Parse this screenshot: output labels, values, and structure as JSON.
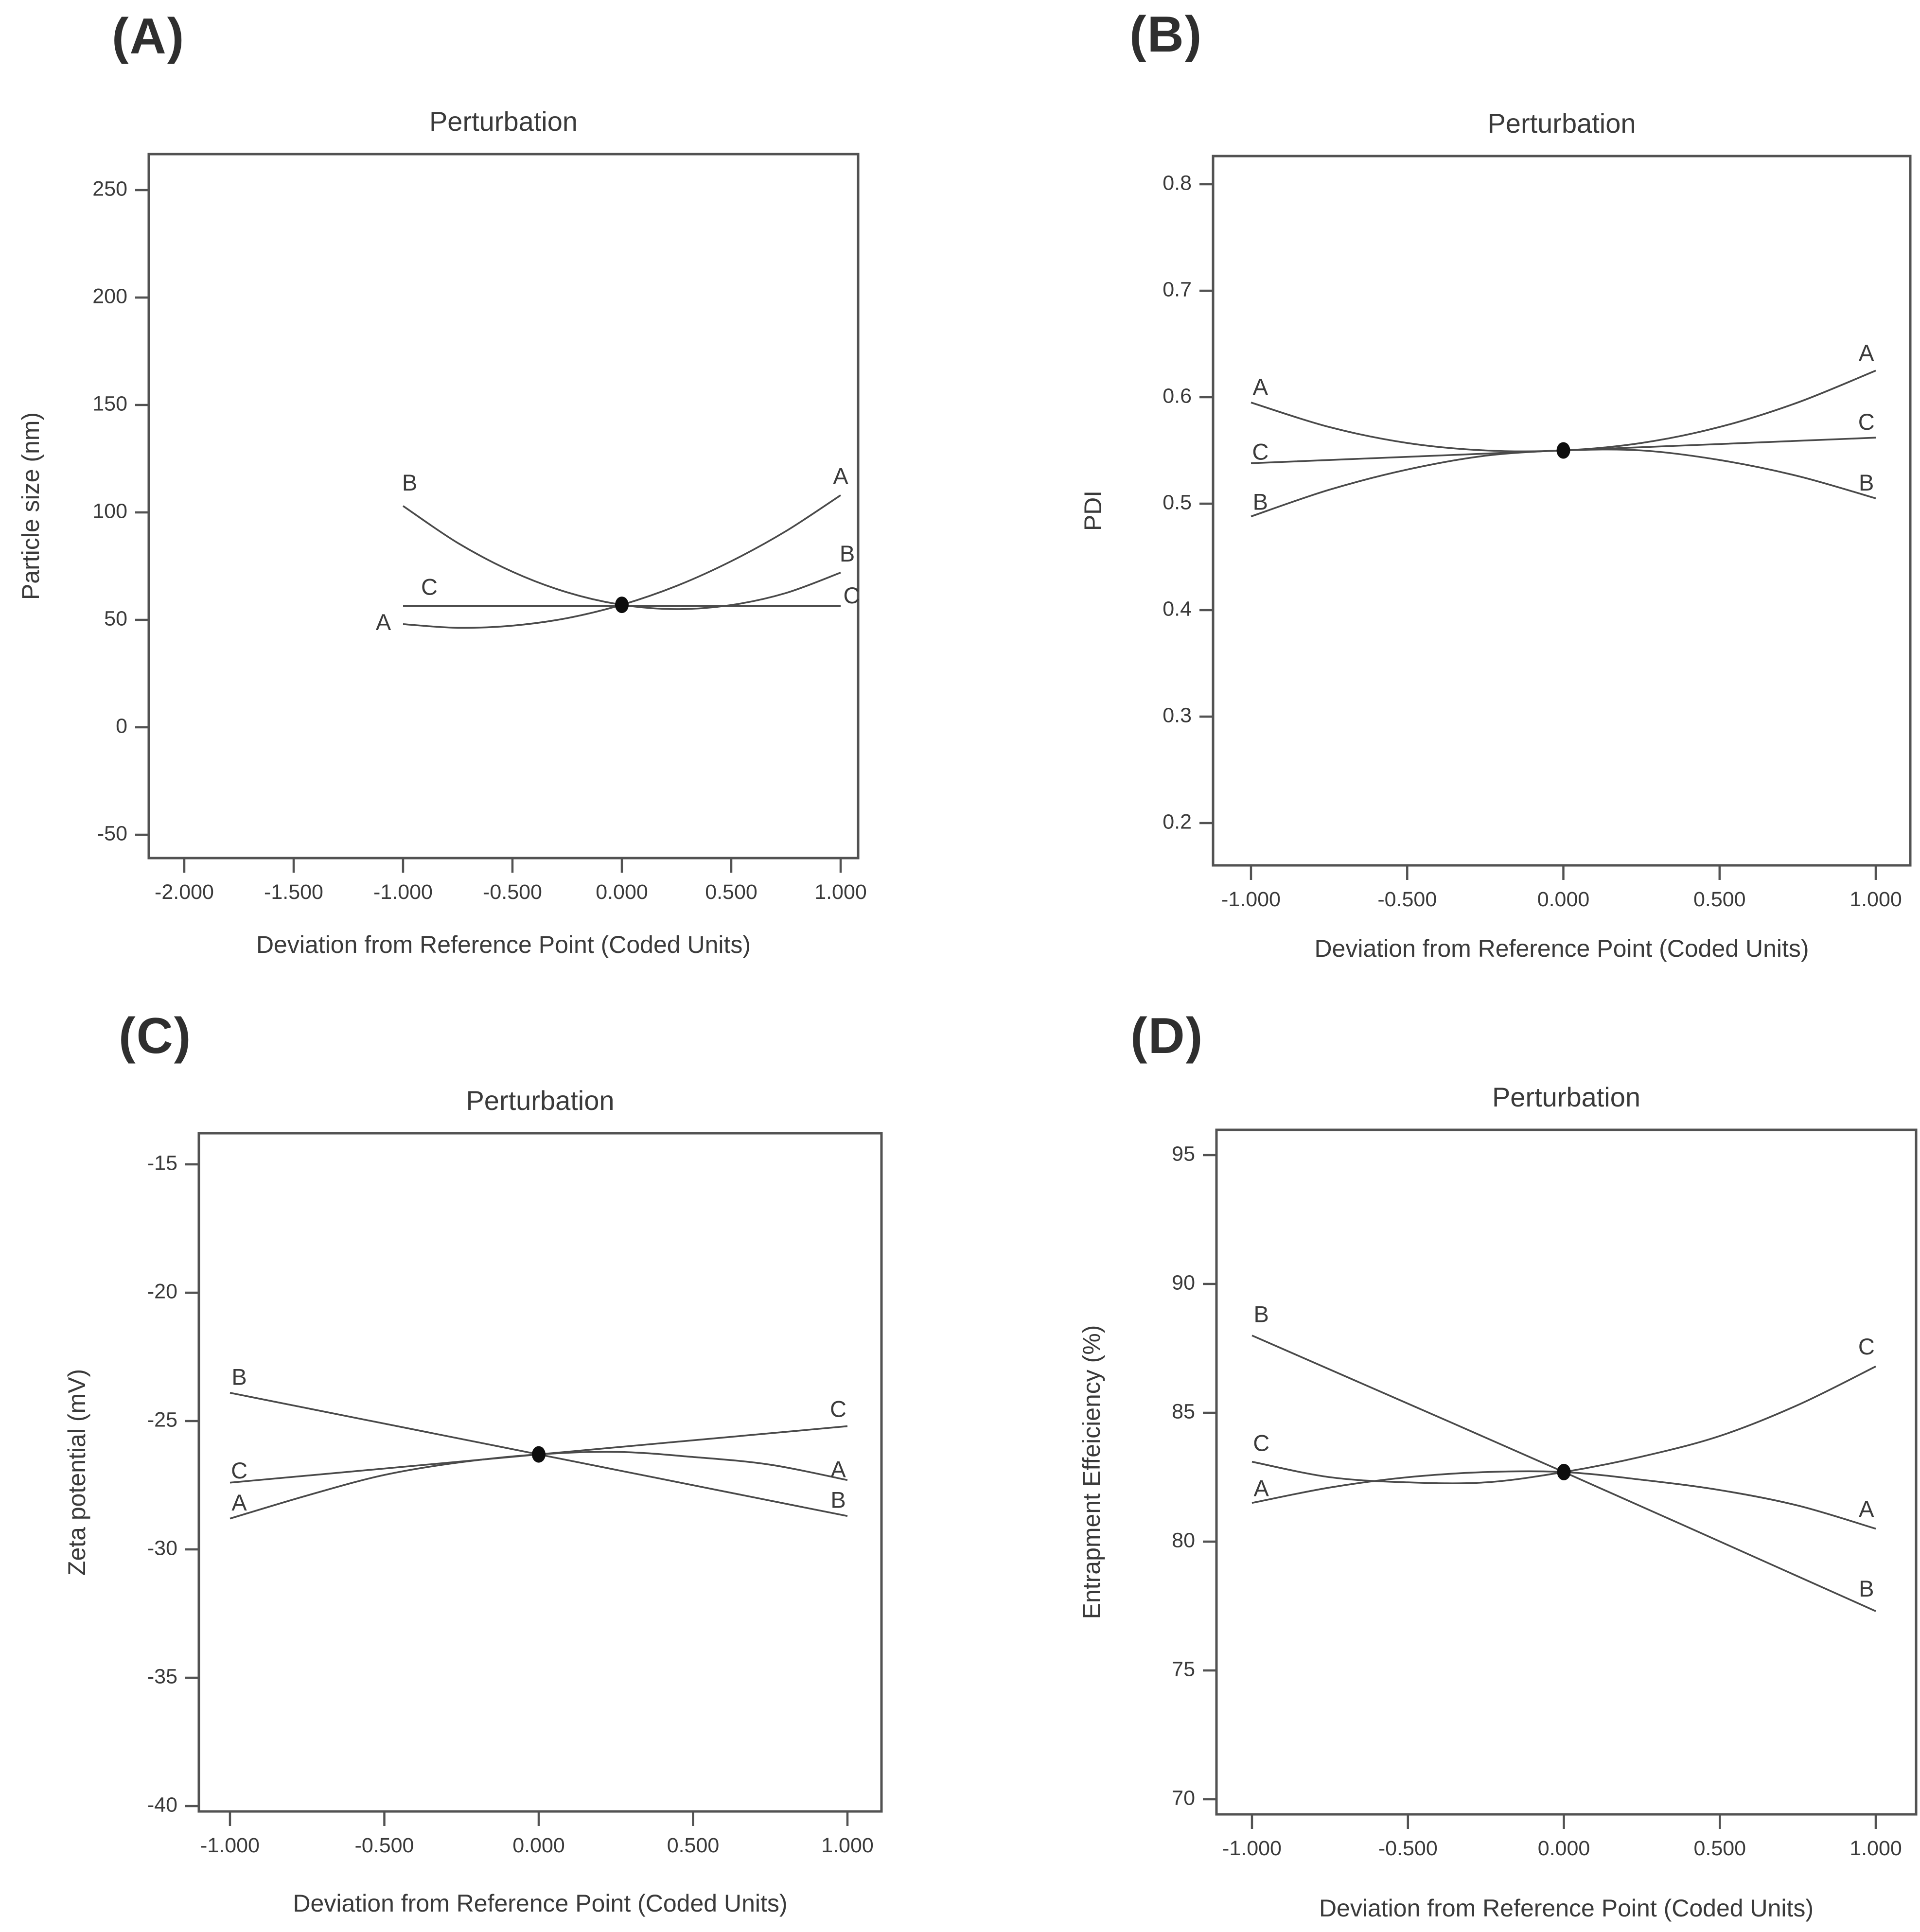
{
  "figure": {
    "background_color": "#ffffff",
    "text_color": "#3a3a3a",
    "axis_color": "#525252",
    "curve_color": "#4a4a4a",
    "dot_color": "#0e0e0e"
  },
  "chart_data": [
    {
      "type": "line",
      "panel_letter": "(A)",
      "title": "Perturbation",
      "xlabel": "Deviation from Reference Point (Coded Units)",
      "ylabel": "Particle size (nm)",
      "xlim": [
        -2.162,
        1.078
      ],
      "ylim": [
        -61,
        267
      ],
      "grid": false,
      "legend_position": "none (curves labeled at both ends)",
      "xticks": {
        "values": [
          -2.0,
          -1.5,
          -1.0,
          -0.5,
          0.0,
          0.5,
          1.0
        ],
        "labels": [
          "-2.000",
          "-1.500",
          "-1.000",
          "-0.500",
          "0.000",
          "0.500",
          "1.000"
        ]
      },
      "yticks": {
        "values": [
          -50,
          0,
          50,
          100,
          150,
          200,
          250
        ],
        "labels": [
          "-50",
          "0",
          "50",
          "100",
          "150",
          "200",
          "250"
        ]
      },
      "center_point": {
        "x": 0,
        "y": 57
      },
      "series": [
        {
          "name": "A",
          "x": [
            -1,
            -0.75,
            -0.5,
            -0.25,
            0,
            0.25,
            0.5,
            0.75,
            1
          ],
          "y": [
            48,
            46.3,
            47.3,
            50.8,
            57,
            65.8,
            77.3,
            91.3,
            108
          ]
        },
        {
          "name": "B",
          "x": [
            -1,
            -0.75,
            -0.5,
            -0.25,
            0,
            0.25,
            0.5,
            0.75,
            1
          ],
          "y": [
            103,
            85.8,
            72.4,
            62.8,
            57,
            55,
            56.9,
            62.5,
            72
          ]
        },
        {
          "name": "C",
          "x": [
            -1,
            0,
            1
          ],
          "y": [
            56.5,
            56.5,
            56.5
          ]
        }
      ],
      "curve_labels": [
        {
          "text": "B",
          "x": -0.97,
          "y": 113
        },
        {
          "text": "C",
          "x": -0.88,
          "y": 64.5
        },
        {
          "text": "A",
          "x": -1.09,
          "y": 48
        },
        {
          "text": "A",
          "x": 1.0,
          "y": 116
        },
        {
          "text": "B",
          "x": 1.03,
          "y": 80
        },
        {
          "text": "C",
          "x": 1.05,
          "y": 60.5
        }
      ]
    },
    {
      "type": "line",
      "panel_letter": "(B)",
      "title": "Perturbation",
      "xlabel": "Deviation from Reference Point (Coded Units)",
      "ylabel": "PDI",
      "xlim": [
        -1.12,
        1.11
      ],
      "ylim": [
        0.16,
        0.826
      ],
      "grid": false,
      "legend_position": "none (curves labeled at both ends)",
      "xticks": {
        "values": [
          -1.0,
          -0.5,
          0.0,
          0.5,
          1.0
        ],
        "labels": [
          "-1.000",
          "-0.500",
          "0.000",
          "0.500",
          "1.000"
        ]
      },
      "yticks": {
        "values": [
          0.2,
          0.3,
          0.4,
          0.5,
          0.6,
          0.7,
          0.8
        ],
        "labels": [
          "0.2",
          "0.3",
          "0.4",
          "0.5",
          "0.6",
          "0.7",
          "0.8"
        ]
      },
      "center_point": {
        "x": 0,
        "y": 0.55
      },
      "series": [
        {
          "name": "A",
          "x": [
            -1,
            -0.75,
            -0.5,
            -0.25,
            0,
            0.25,
            0.5,
            0.75,
            1
          ],
          "y": [
            0.595,
            0.572,
            0.557,
            0.55,
            0.55,
            0.557,
            0.572,
            0.595,
            0.625
          ]
        },
        {
          "name": "B",
          "x": [
            -1,
            -0.75,
            -0.5,
            -0.25,
            0,
            0.25,
            0.5,
            0.75,
            1
          ],
          "y": [
            0.488,
            0.513,
            0.532,
            0.545,
            0.55,
            0.55,
            0.541,
            0.526,
            0.505
          ]
        },
        {
          "name": "C",
          "x": [
            -1,
            0,
            1
          ],
          "y": [
            0.538,
            0.55,
            0.562
          ]
        }
      ],
      "curve_labels": [
        {
          "text": "A",
          "x": -0.97,
          "y": 0.608
        },
        {
          "text": "C",
          "x": -0.97,
          "y": 0.547
        },
        {
          "text": "B",
          "x": -0.97,
          "y": 0.5
        },
        {
          "text": "A",
          "x": 0.97,
          "y": 0.64
        },
        {
          "text": "C",
          "x": 0.97,
          "y": 0.575
        },
        {
          "text": "B",
          "x": 0.97,
          "y": 0.518
        }
      ]
    },
    {
      "type": "line",
      "panel_letter": "(C)",
      "title": "Perturbation",
      "xlabel": "Deviation from Reference Point (Coded Units)",
      "ylabel": "Zeta potential (mV)",
      "xlim": [
        -1.1,
        1.11
      ],
      "ylim": [
        -41,
        -13.8
      ],
      "grid": false,
      "legend_position": "none (curves labeled at both ends)",
      "xticks": {
        "values": [
          -1.0,
          -0.5,
          0.0,
          0.5,
          1.0
        ],
        "labels": [
          "-1.000",
          "-0.500",
          "0.000",
          "0.500",
          "1.000"
        ]
      },
      "yticks": {
        "values": [
          -40,
          -35,
          -30,
          -25,
          -20,
          -15
        ],
        "labels": [
          "-40",
          "-35",
          "-30",
          "-25",
          "-20",
          "-15"
        ]
      },
      "center_point": {
        "x": 0,
        "y": -26.3
      },
      "series": [
        {
          "name": "A",
          "x": [
            -1,
            -0.75,
            -0.5,
            -0.25,
            0,
            0.25,
            0.5,
            0.75,
            1
          ],
          "y": [
            -28.8,
            -27.9,
            -27.1,
            -26.6,
            -26.3,
            -26.2,
            -26.4,
            -26.7,
            -27.3
          ]
        },
        {
          "name": "B",
          "x": [
            -1,
            0,
            1
          ],
          "y": [
            -23.9,
            -26.3,
            -28.7
          ]
        },
        {
          "name": "C",
          "x": [
            -1,
            0,
            1
          ],
          "y": [
            -27.4,
            -26.3,
            -25.2
          ]
        }
      ],
      "curve_labels": [
        {
          "text": "B",
          "x": -0.97,
          "y": -23.35
        },
        {
          "text": "C",
          "x": -0.97,
          "y": -27.0
        },
        {
          "text": "A",
          "x": -0.97,
          "y": -28.25
        },
        {
          "text": "C",
          "x": 0.97,
          "y": -24.6
        },
        {
          "text": "A",
          "x": 0.97,
          "y": -26.95
        },
        {
          "text": "B",
          "x": 0.97,
          "y": -28.15
        }
      ]
    },
    {
      "type": "line",
      "panel_letter": "(D)",
      "title": "Perturbation",
      "xlabel": "Deviation from Reference Point (Coded Units)",
      "ylabel": "Entrapment Effeiciency (%)",
      "xlim": [
        -1.12,
        1.13
      ],
      "ylim": [
        69.2,
        96
      ],
      "grid": false,
      "legend_position": "none (curves labeled at both ends)",
      "xticks": {
        "values": [
          -1.0,
          -0.5,
          0.0,
          0.5,
          1.0
        ],
        "labels": [
          "-1.000",
          "-0.500",
          "0.000",
          "0.500",
          "1.000"
        ]
      },
      "yticks": {
        "values": [
          70,
          75,
          80,
          85,
          90,
          95
        ],
        "labels": [
          "70",
          "75",
          "80",
          "85",
          "90",
          "95"
        ]
      },
      "center_point": {
        "x": 0,
        "y": 82.7
      },
      "series": [
        {
          "name": "A",
          "x": [
            -1,
            -0.75,
            -0.5,
            -0.25,
            0,
            0.25,
            0.5,
            0.75,
            1
          ],
          "y": [
            81.5,
            82.1,
            82.5,
            82.7,
            82.7,
            82.4,
            82.0,
            81.4,
            80.5
          ]
        },
        {
          "name": "B",
          "x": [
            -1,
            0,
            1
          ],
          "y": [
            88.0,
            82.7,
            77.3
          ]
        },
        {
          "name": "C",
          "x": [
            -1,
            -0.75,
            -0.5,
            -0.25,
            0,
            0.25,
            0.5,
            0.75,
            1
          ],
          "y": [
            83.1,
            82.5,
            82.3,
            82.3,
            82.7,
            83.3,
            84.1,
            85.3,
            86.8
          ]
        }
      ],
      "curve_labels": [
        {
          "text": "B",
          "x": -0.97,
          "y": 88.75
        },
        {
          "text": "C",
          "x": -0.97,
          "y": 83.75
        },
        {
          "text": "A",
          "x": -0.97,
          "y": 82.0
        },
        {
          "text": "C",
          "x": 0.97,
          "y": 87.5
        },
        {
          "text": "A",
          "x": 0.97,
          "y": 81.2
        },
        {
          "text": "B",
          "x": 0.97,
          "y": 78.1
        }
      ]
    }
  ]
}
